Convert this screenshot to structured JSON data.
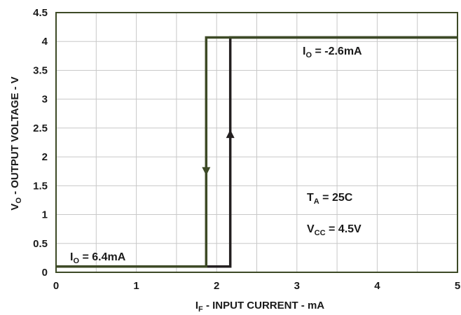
{
  "chart_data": {
    "type": "line",
    "xlabel_main": "I",
    "xlabel_sub": "F",
    "xlabel_rest": " - INPUT CURRENT - mA",
    "ylabel_main": "V",
    "ylabel_sub": "O",
    "ylabel_rest": " - OUTPUT VOLTAGE - V",
    "xlim": [
      0,
      5
    ],
    "ylim": [
      0,
      4.5
    ],
    "x_ticks": [
      "0",
      "1",
      "2",
      "3",
      "4",
      "5"
    ],
    "y_ticks": [
      "0",
      "0.5",
      "1",
      "1.5",
      "2",
      "2.5",
      "3",
      "3.5",
      "4",
      "4.5"
    ],
    "grid": true,
    "series": [
      {
        "color": "#3d4a26",
        "direction": "down",
        "x": [
          0,
          1.87,
          1.87,
          5
        ],
        "y": [
          0.1,
          0.1,
          4.07,
          4.07
        ]
      },
      {
        "color": "#231f20",
        "direction": "up",
        "x": [
          0,
          2.17,
          2.17,
          5
        ],
        "y": [
          0.1,
          0.1,
          4.07,
          4.07
        ]
      }
    ],
    "annotations": {
      "io_high": {
        "main": "I",
        "sub": "O",
        "rest": " = -2.6mA"
      },
      "io_low": {
        "main": "I",
        "sub": "O",
        "rest": " = 6.4mA"
      },
      "ta": {
        "main": "T",
        "sub": "A",
        "rest": " = 25C"
      },
      "vcc": {
        "main": "V",
        "sub": "CC",
        "rest": " = 4.5V"
      }
    }
  }
}
